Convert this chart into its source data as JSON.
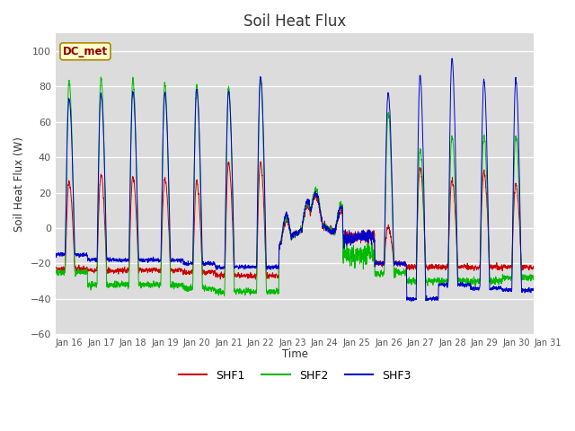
{
  "title": "Soil Heat Flux",
  "ylabel": "Soil Heat Flux (W)",
  "xlabel": "Time",
  "ylim": [
    -60,
    110
  ],
  "yticks": [
    -60,
    -40,
    -20,
    0,
    20,
    40,
    60,
    80,
    100
  ],
  "bg_color": "#dcdcdc",
  "fig_color": "#ffffff",
  "legend_label": "DC_met",
  "series_labels": [
    "SHF1",
    "SHF2",
    "SHF3"
  ],
  "series_colors": [
    "#cc0000",
    "#00bb00",
    "#0000cc"
  ],
  "x_tick_labels": [
    "Jan 16",
    "Jan 17",
    "Jan 18",
    "Jan 19",
    "Jan 20",
    "Jan 21",
    "Jan 22",
    "Jan 23",
    "Jan 24",
    "Jan 25",
    "Jan 26",
    "Jan 27",
    "Jan 28",
    "Jan 29",
    "Jan 30",
    "Jan 31"
  ],
  "days": 15,
  "pts_per_day": 288
}
